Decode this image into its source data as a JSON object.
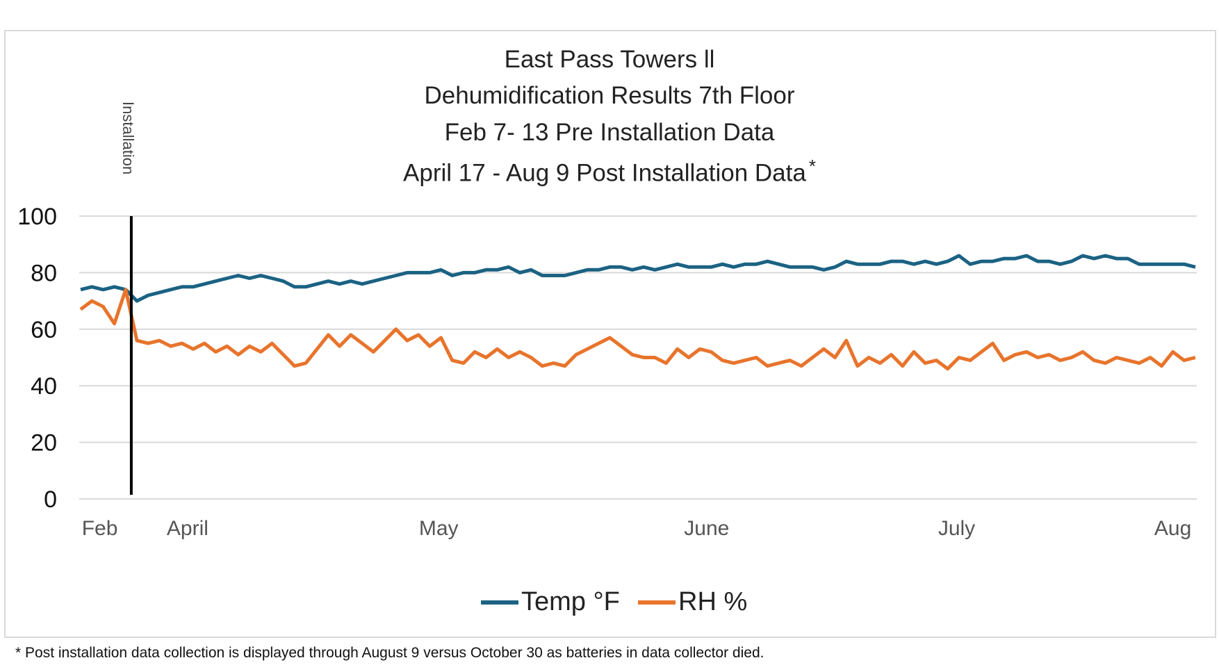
{
  "chart_data": {
    "type": "line",
    "title": [
      "East Pass Towers ll",
      "Dehumidification Results 7th Floor",
      "Feb 7- 13 Pre Installation Data",
      "April 17 - Aug 9 Post Installation Data"
    ],
    "title_asterisk": "*",
    "ylim": [
      0,
      100
    ],
    "y_ticks": [
      0,
      20,
      40,
      60,
      80,
      100
    ],
    "grid": "horizontal",
    "x_tick_labels": [
      {
        "label": "Feb",
        "index": 1.7
      },
      {
        "label": "April",
        "index": 9.5
      },
      {
        "label": "May",
        "index": 31.8
      },
      {
        "label": "June",
        "index": 55.6
      },
      {
        "label": "July",
        "index": 77.8
      },
      {
        "label": "Aug",
        "index": 97
      }
    ],
    "annotation": {
      "label": "Installation",
      "index": 4.5
    },
    "legend_position": "bottom",
    "series": [
      {
        "name": "Temp °F",
        "color": "#1b6283",
        "values": [
          74,
          75,
          74,
          75,
          74,
          70,
          72,
          73,
          74,
          75,
          75,
          76,
          77,
          78,
          79,
          78,
          79,
          78,
          77,
          75,
          75,
          76,
          77,
          76,
          77,
          76,
          77,
          78,
          79,
          80,
          80,
          80,
          81,
          79,
          80,
          80,
          81,
          81,
          82,
          80,
          81,
          79,
          79,
          79,
          80,
          81,
          81,
          82,
          82,
          81,
          82,
          81,
          82,
          83,
          82,
          82,
          82,
          83,
          82,
          83,
          83,
          84,
          83,
          82,
          82,
          82,
          81,
          82,
          84,
          83,
          83,
          83,
          84,
          84,
          83,
          84,
          83,
          84,
          86,
          83,
          84,
          84,
          85,
          85,
          86,
          84,
          84,
          83,
          84,
          86,
          85,
          86,
          85,
          85,
          83,
          83,
          83,
          83,
          83,
          82
        ]
      },
      {
        "name": "RH %",
        "color": "#e8742c",
        "values": [
          67,
          70,
          68,
          62,
          74,
          56,
          55,
          56,
          54,
          55,
          53,
          55,
          52,
          54,
          51,
          54,
          52,
          55,
          51,
          47,
          48,
          53,
          58,
          54,
          58,
          55,
          52,
          56,
          60,
          56,
          58,
          54,
          57,
          49,
          48,
          52,
          50,
          53,
          50,
          52,
          50,
          47,
          48,
          47,
          51,
          53,
          55,
          57,
          54,
          51,
          50,
          50,
          48,
          53,
          50,
          53,
          52,
          49,
          48,
          49,
          50,
          47,
          48,
          49,
          47,
          50,
          53,
          50,
          56,
          47,
          50,
          48,
          51,
          47,
          52,
          48,
          49,
          46,
          50,
          49,
          52,
          55,
          49,
          51,
          52,
          50,
          51,
          49,
          50,
          52,
          49,
          48,
          50,
          49,
          48,
          50,
          47,
          52,
          49,
          50
        ]
      }
    ]
  },
  "footnote": "* Post installation data collection is displayed through August 9 versus October 30 as batteries in data collector died."
}
